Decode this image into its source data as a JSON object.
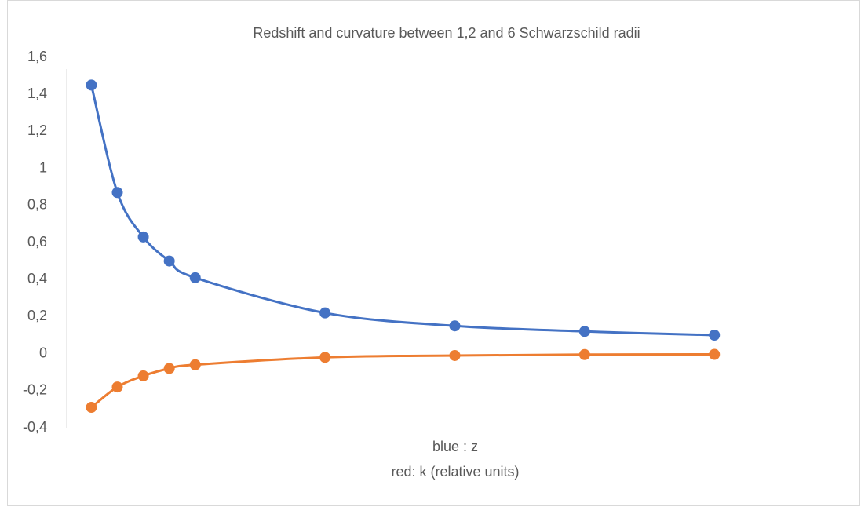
{
  "chart_data": {
    "type": "scatter",
    "title": "Redshift and curvature between 1,2 and 6 Schwarzschild radii",
    "xlabel": [
      "blue : z",
      "red: k (relative units)"
    ],
    "x": [
      1.2,
      1.4,
      1.6,
      1.8,
      2,
      3,
      4,
      5,
      6
    ],
    "xlim": [
      1.01,
      6.18
    ],
    "series": [
      {
        "color": "#4472c4",
        "values": [
          1.45,
          0.87,
          0.63,
          0.5,
          0.41,
          0.22,
          0.15,
          0.12,
          0.1
        ]
      },
      {
        "color": "#ed7d31",
        "values": [
          -0.29,
          -0.18,
          -0.12,
          -0.08,
          -0.06,
          -0.02,
          -0.01,
          -0.005,
          -0.004
        ]
      }
    ],
    "ylim": [
      -0.4,
      1.6
    ],
    "yticks": [
      {
        "value": -0.4,
        "label": "-0,4"
      },
      {
        "value": -0.2,
        "label": "-0,2"
      },
      0,
      {
        "value": 0.2,
        "label": "0,2"
      },
      {
        "value": 0.4,
        "label": "0,4"
      },
      {
        "value": 0.6,
        "label": "0,6"
      },
      {
        "value": 0.8,
        "label": "0,8"
      },
      1,
      {
        "value": 1.2,
        "label": "1,2"
      },
      {
        "value": 1.4,
        "label": "1,4"
      },
      {
        "value": 1.6,
        "label": "1,6"
      }
    ],
    "smooth": true,
    "grid": false
  }
}
